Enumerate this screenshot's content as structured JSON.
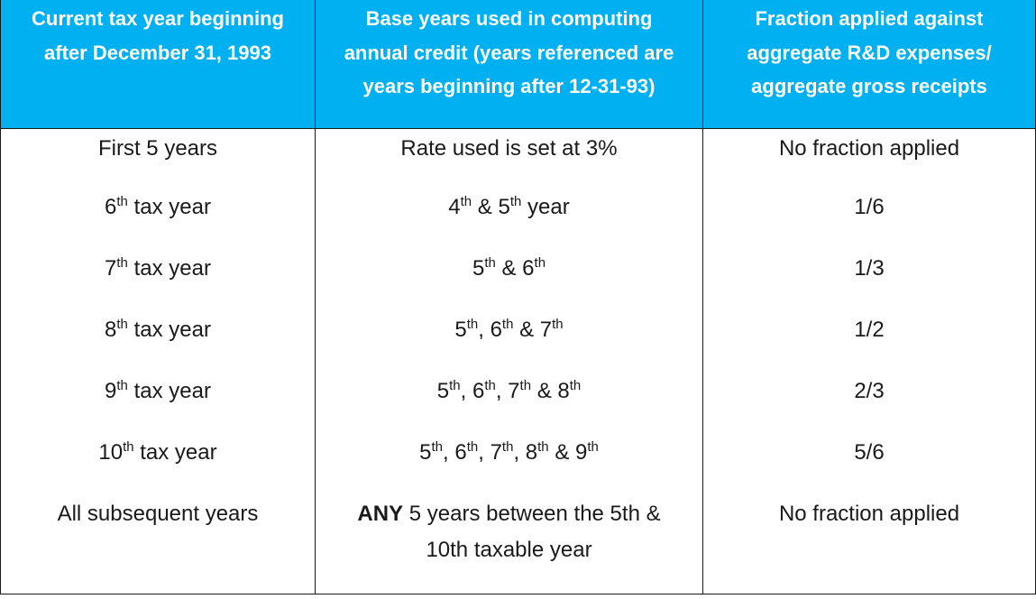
{
  "headers": [
    "Current tax year beginning after December 31, 1993",
    "Base years used in computing annual credit (years referenced are years beginning after 12-31-93)",
    "Fraction applied against aggregate R&D expenses/ aggregate gross receipts"
  ],
  "header_lines": [
    [
      "Current tax year beginning",
      "after December 31, 1993"
    ],
    [
      "Base years used in computing",
      "annual credit (years referenced are",
      "years beginning after 12-31-93)"
    ],
    [
      "Fraction applied against",
      "aggregate R&D expenses/",
      "aggregate gross receipts"
    ]
  ],
  "rows": [
    {
      "year": {
        "pre": "First 5 years"
      },
      "base": {
        "text": "Rate used is set at 3%"
      },
      "fraction": "No fraction applied"
    },
    {
      "year": {
        "num": "6",
        "sup": "th",
        "post": " tax year"
      },
      "base": {
        "parts": [
          [
            "4",
            "th",
            " & "
          ],
          [
            "5",
            "th",
            " year"
          ]
        ]
      },
      "fraction": "1/6"
    },
    {
      "year": {
        "num": "7",
        "sup": "th",
        "post": " tax year"
      },
      "base": {
        "parts": [
          [
            "5",
            "th",
            " & "
          ],
          [
            "6",
            "th",
            ""
          ]
        ]
      },
      "fraction": "1/3"
    },
    {
      "year": {
        "num": "8",
        "sup": "th",
        "post": " tax year"
      },
      "base": {
        "parts": [
          [
            "5",
            "th",
            ", "
          ],
          [
            "6",
            "th",
            " & "
          ],
          [
            "7",
            "th",
            ""
          ]
        ]
      },
      "fraction": "1/2"
    },
    {
      "year": {
        "num": "9",
        "sup": "th",
        "post": " tax year"
      },
      "base": {
        "parts": [
          [
            "5",
            "th",
            ", "
          ],
          [
            "6",
            "th",
            ", "
          ],
          [
            "7",
            "th",
            " & "
          ],
          [
            "8",
            "th",
            ""
          ]
        ]
      },
      "fraction": "2/3"
    },
    {
      "year": {
        "num": "10",
        "sup": "th",
        "post": " tax year"
      },
      "base": {
        "parts": [
          [
            "5",
            "th",
            ", "
          ],
          [
            "6",
            "th",
            ", "
          ],
          [
            "7",
            "th",
            ", "
          ],
          [
            "8",
            "th",
            " & "
          ],
          [
            "9",
            "th",
            ""
          ]
        ]
      },
      "fraction": "5/6"
    },
    {
      "year": {
        "pre": "All subsequent years"
      },
      "base": {
        "bold": "ANY",
        "line1": " 5 years between the 5th &",
        "line2": "10th taxable year"
      },
      "fraction": "No fraction applied"
    }
  ],
  "colors": {
    "header_bg": "#00b0f0",
    "header_text": "#ffffff",
    "border": "#1a1a1a",
    "text": "#1a1a1a"
  }
}
